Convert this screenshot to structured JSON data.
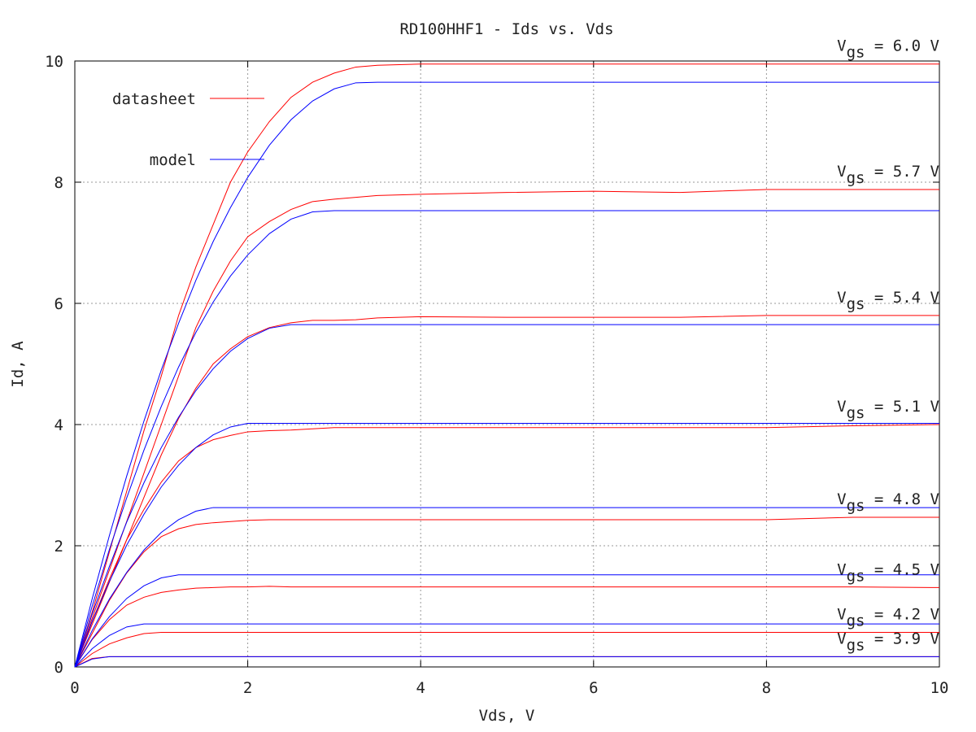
{
  "chart_data": {
    "type": "line",
    "title": "RD100HHF1 - Ids vs. Vds",
    "x_label": "Vds, V",
    "y_label": "Id, A",
    "xlim": [
      0,
      10
    ],
    "ylim": [
      0,
      10
    ],
    "xticks": [
      0,
      2,
      4,
      6,
      8,
      10
    ],
    "yticks": [
      0,
      2,
      4,
      6,
      8,
      10
    ],
    "grid": true,
    "legend": "upper left",
    "x": [
      0,
      0.2,
      0.4,
      0.6,
      0.8,
      1,
      1.2,
      1.4,
      1.6,
      1.8,
      2,
      2.25,
      2.5,
      2.75,
      3,
      3.25,
      3.5,
      4,
      5,
      6,
      7,
      8,
      9,
      10
    ],
    "series": [
      {
        "name": "datasheet",
        "color": "#ff0000",
        "curves": [
          {
            "values": [
              0,
              0.9,
              1.9,
              2.9,
              3.9,
              4.8,
              5.8,
              6.6,
              7.3,
              8.0,
              8.5,
              9.0,
              9.4,
              9.65,
              9.8,
              9.9,
              9.93,
              9.95,
              9.95,
              9.95,
              9.95,
              9.95,
              9.95,
              9.95
            ]
          },
          {
            "values": [
              0,
              0.8,
              1.6,
              2.4,
              3.2,
              4.0,
              4.8,
              5.6,
              6.2,
              6.7,
              7.1,
              7.35,
              7.55,
              7.68,
              7.72,
              7.75,
              7.78,
              7.8,
              7.83,
              7.85,
              7.83,
              7.88,
              7.88,
              7.88
            ]
          },
          {
            "values": [
              0,
              0.7,
              1.4,
              2.1,
              2.8,
              3.5,
              4.1,
              4.6,
              5.0,
              5.25,
              5.45,
              5.6,
              5.68,
              5.72,
              5.72,
              5.73,
              5.76,
              5.78,
              5.77,
              5.77,
              5.77,
              5.8,
              5.8,
              5.8
            ]
          },
          {
            "values": [
              0,
              0.75,
              1.45,
              2.1,
              2.6,
              3.05,
              3.4,
              3.62,
              3.75,
              3.82,
              3.88,
              3.9,
              3.91,
              3.93,
              3.95,
              3.95,
              3.95,
              3.95,
              3.95,
              3.95,
              3.95,
              3.95,
              3.98,
              4.0
            ]
          },
          {
            "values": [
              0,
              0.55,
              1.1,
              1.55,
              1.9,
              2.15,
              2.28,
              2.35,
              2.38,
              2.4,
              2.42,
              2.43,
              2.43,
              2.43,
              2.43,
              2.43,
              2.43,
              2.43,
              2.43,
              2.43,
              2.43,
              2.43,
              2.47,
              2.47
            ]
          },
          {
            "values": [
              0,
              0.45,
              0.78,
              1.02,
              1.15,
              1.23,
              1.27,
              1.3,
              1.31,
              1.32,
              1.32,
              1.33,
              1.32,
              1.32,
              1.32,
              1.32,
              1.32,
              1.32,
              1.32,
              1.32,
              1.32,
              1.32,
              1.32,
              1.31
            ]
          },
          {
            "values": [
              0,
              0.22,
              0.38,
              0.48,
              0.55,
              0.57,
              0.57,
              0.57,
              0.57,
              0.57,
              0.57,
              0.57,
              0.57,
              0.57,
              0.57,
              0.57,
              0.57,
              0.57,
              0.57,
              0.57,
              0.57,
              0.57,
              0.57,
              0.57
            ]
          },
          {
            "values": [
              0,
              0.14,
              0.17,
              0.17,
              0.17,
              0.17,
              0.17,
              0.17,
              0.17,
              0.17,
              0.17,
              0.17,
              0.17,
              0.17,
              0.17,
              0.17,
              0.17,
              0.17,
              0.17,
              0.17,
              0.17,
              0.17,
              0.17,
              0.17
            ]
          }
        ]
      },
      {
        "name": "model",
        "color": "#0000ff",
        "curves": [
          {
            "values": [
              0,
              1.12,
              2.17,
              3.15,
              4.06,
              4.9,
              5.67,
              6.38,
              7.02,
              7.58,
              8.08,
              8.61,
              9.03,
              9.34,
              9.54,
              9.64,
              9.65,
              9.65,
              9.65,
              9.65,
              9.65,
              9.65,
              9.65,
              9.65
            ]
          },
          {
            "values": [
              0,
              1.0,
              1.94,
              2.79,
              3.58,
              4.3,
              4.95,
              5.52,
              6.02,
              6.45,
              6.8,
              7.15,
              7.39,
              7.51,
              7.53,
              7.53,
              7.53,
              7.53,
              7.53,
              7.53,
              7.53,
              7.53,
              7.53,
              7.53
            ]
          },
          {
            "values": [
              0,
              0.87,
              1.66,
              2.39,
              3.04,
              3.62,
              4.12,
              4.56,
              4.92,
              5.21,
              5.42,
              5.59,
              5.65,
              5.65,
              5.65,
              5.65,
              5.65,
              5.65,
              5.65,
              5.65,
              5.65,
              5.65,
              5.65,
              5.65
            ]
          },
          {
            "values": [
              0,
              0.75,
              1.41,
              2.01,
              2.52,
              2.97,
              3.33,
              3.62,
              3.83,
              3.96,
              4.02,
              4.02,
              4.02,
              4.02,
              4.02,
              4.02,
              4.02,
              4.02,
              4.02,
              4.02,
              4.02,
              4.02,
              4.02,
              4.02
            ]
          },
          {
            "values": [
              0,
              0.6,
              1.12,
              1.56,
              1.93,
              2.22,
              2.43,
              2.57,
              2.63,
              2.63,
              2.63,
              2.63,
              2.63,
              2.63,
              2.63,
              2.63,
              2.63,
              2.63,
              2.63,
              2.63,
              2.63,
              2.63,
              2.63,
              2.63
            ]
          },
          {
            "values": [
              0,
              0.46,
              0.83,
              1.13,
              1.34,
              1.47,
              1.52,
              1.52,
              1.52,
              1.52,
              1.52,
              1.52,
              1.52,
              1.52,
              1.52,
              1.52,
              1.52,
              1.52,
              1.52,
              1.52,
              1.52,
              1.52,
              1.52,
              1.52
            ]
          },
          {
            "values": [
              0,
              0.3,
              0.52,
              0.66,
              0.71,
              0.71,
              0.71,
              0.71,
              0.71,
              0.71,
              0.71,
              0.71,
              0.71,
              0.71,
              0.71,
              0.71,
              0.71,
              0.71,
              0.71,
              0.71,
              0.71,
              0.71,
              0.71,
              0.71
            ]
          },
          {
            "values": [
              0,
              0.13,
              0.17,
              0.17,
              0.17,
              0.17,
              0.17,
              0.17,
              0.17,
              0.17,
              0.17,
              0.17,
              0.17,
              0.17,
              0.17,
              0.17,
              0.17,
              0.17,
              0.17,
              0.17,
              0.17,
              0.17,
              0.17,
              0.17
            ]
          }
        ]
      }
    ],
    "annotations": [
      {
        "text": "V",
        "subscript": "gs",
        "suffix": " = 6.0 V"
      },
      {
        "text": "V",
        "subscript": "gs",
        "suffix": " = 5.7 V"
      },
      {
        "text": "V",
        "subscript": "gs",
        "suffix": " = 5.4 V"
      },
      {
        "text": "V",
        "subscript": "gs",
        "suffix": " = 5.1 V"
      },
      {
        "text": "V",
        "subscript": "gs",
        "suffix": " = 4.8 V"
      },
      {
        "text": "V",
        "subscript": "gs",
        "suffix": " = 4.5 V"
      },
      {
        "text": "V",
        "subscript": "gs",
        "suffix": " = 4.2 V"
      },
      {
        "text": "V",
        "subscript": "gs",
        "suffix": " = 3.9 V"
      }
    ]
  }
}
